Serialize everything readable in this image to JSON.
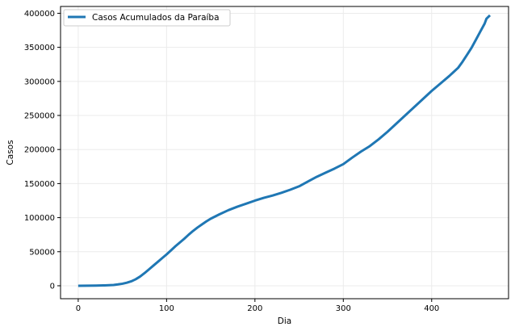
{
  "chart_data": {
    "type": "line",
    "title": "",
    "xlabel": "Dia",
    "ylabel": "Casos",
    "xlim": [
      -20,
      487
    ],
    "ylim": [
      -19000,
      410000
    ],
    "xticks": [
      0,
      100,
      200,
      300,
      400
    ],
    "yticks": [
      0,
      50000,
      100000,
      150000,
      200000,
      250000,
      300000,
      350000,
      400000
    ],
    "grid": true,
    "legend": {
      "position": "top-left"
    },
    "colors": {
      "series": "#1f77b4",
      "grid": "#ebebeb",
      "axis": "#000000"
    },
    "series": [
      {
        "name": "Casos Acumulados da Paraíba",
        "x": [
          0,
          10,
          20,
          30,
          40,
          45,
          50,
          55,
          60,
          65,
          70,
          75,
          80,
          85,
          90,
          95,
          100,
          105,
          110,
          115,
          120,
          125,
          130,
          135,
          140,
          145,
          150,
          160,
          170,
          180,
          190,
          200,
          210,
          220,
          230,
          240,
          250,
          260,
          270,
          280,
          290,
          300,
          310,
          320,
          330,
          340,
          350,
          360,
          370,
          380,
          390,
          400,
          410,
          420,
          425,
          430,
          435,
          440,
          445,
          450,
          455,
          460,
          462,
          466
        ],
        "y": [
          0,
          100,
          300,
          600,
          1200,
          2000,
          3000,
          4500,
          6500,
          9500,
          13500,
          18500,
          24000,
          29500,
          35000,
          40500,
          46000,
          52000,
          58000,
          63500,
          69000,
          75000,
          80500,
          85500,
          90000,
          94500,
          98500,
          105000,
          111000,
          116000,
          120500,
          125000,
          129000,
          132500,
          136500,
          141000,
          146000,
          153000,
          160000,
          166000,
          172000,
          178500,
          188000,
          197000,
          205000,
          215000,
          226000,
          238000,
          250000,
          262000,
          274000,
          286000,
          297000,
          308000,
          314000,
          320000,
          329000,
          339000,
          349000,
          361000,
          373000,
          385000,
          392000,
          397000
        ]
      }
    ]
  }
}
